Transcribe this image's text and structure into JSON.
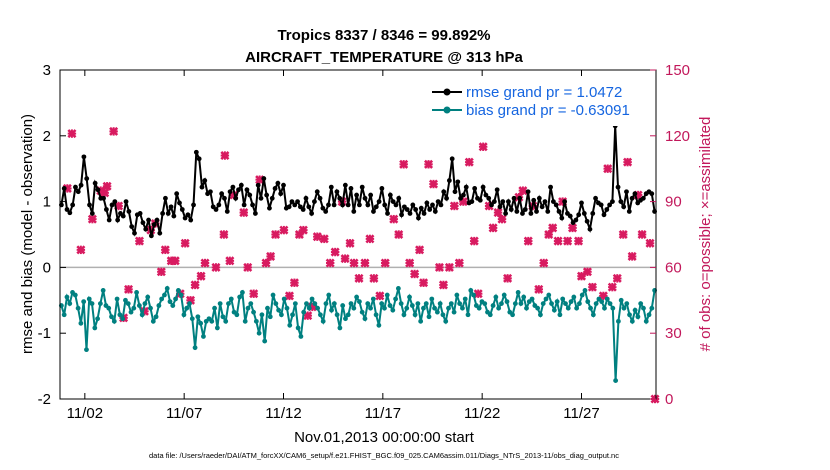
{
  "chart_data": {
    "type": "line",
    "title": "Tropics 8337 / 8346 = 99.892%",
    "subtitle": "AIRCRAFT_TEMPERATURE @ 313 hPa",
    "xlabel": "Nov.01,2013 00:00:00 start",
    "ylabel": "rmse and bias (model - observation)",
    "y2label": "# of obs: o=possible; ×=assimilated",
    "footnote": "data file: /Users/raeder/DAI/ATM_forcXX/CAM6_setup/f.e21.FHIST_BGC.f09_025.CAM6assim.011/Diags_NTrS_2013-11/obs_diag_output.nc",
    "xlim": [
      0.25,
      30.25
    ],
    "ylim": [
      -2,
      3
    ],
    "y2lim": [
      0,
      150
    ],
    "x_ticks": [
      1.5,
      6.5,
      11.5,
      16.5,
      21.5,
      26.5
    ],
    "x_tick_labels": [
      "11/02",
      "11/07",
      "11/12",
      "11/17",
      "11/22",
      "11/27"
    ],
    "y_ticks": [
      -2,
      -1,
      0,
      1,
      2,
      3
    ],
    "y_tick_labels": [
      "-2",
      "-1",
      "0",
      "1",
      "2",
      "3"
    ],
    "y2_ticks": [
      0,
      30,
      60,
      90,
      120,
      150
    ],
    "y2_tick_labels": [
      "0",
      "30",
      "60",
      "90",
      "120",
      "150"
    ],
    "series": [
      {
        "name": "rmse grand pr = 1.0472",
        "color": "#000000",
        "axis": "left",
        "marker": "dot",
        "values": [
          0.95,
          1.2,
          0.88,
          0.83,
          0.95,
          1.22,
          1.15,
          1.25,
          1.68,
          1.35,
          0.95,
          0.82,
          1.28,
          1.18,
          1.05,
          1.05,
          0.88,
          0.72,
          0.95,
          1.0,
          0.72,
          0.82,
          0.78,
          1.0,
          0.85,
          0.62,
          0.52,
          0.8,
          0.82,
          0.68,
          0.58,
          0.72,
          0.48,
          0.65,
          0.72,
          0.52,
          0.82,
          1.05,
          0.82,
          0.92,
          0.78,
          1.12,
          0.98,
          0.88,
          0.75,
          0.8,
          0.72,
          0.95,
          1.75,
          1.65,
          1.22,
          1.32,
          1.12,
          1.15,
          0.92,
          0.88,
          0.95,
          1.12,
          1.05,
          0.85,
          1.15,
          1.22,
          1.05,
          1.18,
          1.25,
          0.95,
          1.18,
          1.1,
          0.95,
          0.82,
          1.25,
          1.05,
          1.35,
          1.1,
          0.9,
          1.05,
          1.2,
          1.28,
          1.12,
          1.25,
          0.9,
          0.92,
          1.0,
          0.95,
          1.0,
          0.92,
          0.88,
          1.05,
          0.92,
          0.82,
          1.0,
          1.15,
          1.05,
          0.9,
          0.85,
          0.95,
          1.22,
          0.95,
          1.15,
          1.05,
          0.95,
          1.25,
          0.95,
          1.2,
          0.85,
          1.1,
          0.95,
          1.22,
          1.05,
          0.95,
          1.1,
          0.85,
          0.92,
          1.0,
          1.2,
          0.95,
          0.82,
          1.1,
          1.0,
          0.95,
          1.05,
          0.8,
          0.92,
          0.88,
          0.82,
          0.95,
          0.88,
          0.75,
          0.9,
          0.82,
          0.98,
          0.88,
          0.95,
          0.85,
          1.0,
          0.95,
          1.15,
          1.05,
          1.32,
          1.65,
          1.15,
          1.3,
          1.05,
          1.1,
          1.22,
          0.98,
          1.0,
          1.2,
          1.05,
          1.02,
          1.22,
          1.1,
          1.05,
          0.95,
          1.0,
          1.18,
          0.92,
          1.0,
          0.82,
          1.0,
          0.88,
          1.05,
          0.85,
          1.05,
          0.82,
          0.88,
          1.15,
          0.82,
          1.02,
          0.85,
          1.05,
          0.92,
          1.0,
          0.85,
          1.22,
          1.0,
          0.95,
          0.85,
          0.75,
          1.0,
          0.82,
          0.78,
          0.68,
          0.72,
          0.8,
          0.98,
          0.82,
          0.7,
          0.58,
          0.82,
          1.05,
          0.98,
          0.95,
          0.8,
          0.88,
          0.95,
          1.0,
          2.15,
          1.22,
          1.0,
          0.92,
          1.15,
          0.85,
          1.05,
          1.12,
          0.98,
          1.02,
          1.05,
          1.12,
          1.15,
          1.12,
          0.85
        ]
      },
      {
        "name": "bias grand pr = -0.63091",
        "color": "#008080",
        "axis": "left",
        "marker": "dot",
        "values": [
          -0.58,
          -0.72,
          -0.45,
          -0.55,
          -0.38,
          -0.42,
          -0.62,
          -0.85,
          -0.52,
          -1.25,
          -0.48,
          -0.55,
          -0.92,
          -0.78,
          -0.55,
          -0.35,
          -0.58,
          -0.62,
          -0.75,
          -0.82,
          -0.48,
          -0.72,
          -0.78,
          -0.5,
          -0.55,
          -0.68,
          -0.62,
          -0.38,
          -0.58,
          -0.72,
          -0.55,
          -0.45,
          -0.62,
          -0.82,
          -0.75,
          -0.58,
          -0.48,
          -0.42,
          -0.32,
          -0.52,
          -0.58,
          -0.48,
          -0.35,
          -0.42,
          -0.72,
          -0.62,
          -0.55,
          -0.78,
          -1.22,
          -0.75,
          -0.85,
          -1.05,
          -0.82,
          -0.78,
          -0.82,
          -0.62,
          -0.92,
          -0.55,
          -0.75,
          -0.82,
          -0.55,
          -0.48,
          -0.68,
          -0.72,
          -0.45,
          -0.38,
          -0.82,
          -0.62,
          -0.55,
          -0.68,
          -0.82,
          -1.0,
          -0.72,
          -1.12,
          -0.62,
          -0.75,
          -0.42,
          -0.55,
          -0.65,
          -0.72,
          -0.48,
          -0.62,
          -0.88,
          -0.72,
          -0.55,
          -0.92,
          -1.05,
          -0.68,
          -0.55,
          -0.62,
          -0.48,
          -0.55,
          -0.62,
          -0.72,
          -0.82,
          -0.55,
          -0.42,
          -0.65,
          -0.55,
          -0.72,
          -0.92,
          -0.58,
          -0.78,
          -0.72,
          -0.55,
          -0.62,
          -0.45,
          -0.52,
          -0.68,
          -0.78,
          -0.55,
          -0.62,
          -0.48,
          -0.72,
          -0.88,
          -0.55,
          -0.62,
          -0.42,
          -0.58,
          -0.65,
          -0.48,
          -0.32,
          -0.55,
          -0.72,
          -0.62,
          -0.45,
          -0.58,
          -0.72,
          -0.55,
          -0.82,
          -0.62,
          -0.55,
          -0.75,
          -0.48,
          -0.62,
          -0.68,
          -0.55,
          -0.72,
          -0.82,
          -0.62,
          -0.55,
          -0.68,
          -0.42,
          -0.55,
          -0.62,
          -0.48,
          -0.72,
          -0.35,
          -0.42,
          -0.58,
          -0.62,
          -0.52,
          -0.55,
          -0.68,
          -0.72,
          -0.58,
          -0.45,
          -0.62,
          -0.55,
          -0.42,
          -0.52,
          -0.68,
          -0.72,
          -0.55,
          -0.38,
          -0.55,
          -0.45,
          -0.62,
          -0.52,
          -0.48,
          -0.58,
          -0.62,
          -0.72,
          -0.55,
          -0.48,
          -0.42,
          -0.55,
          -0.65,
          -0.52,
          -0.72,
          -0.48,
          -0.55,
          -0.62,
          -0.52,
          -0.45,
          -0.62,
          -0.55,
          -0.42,
          -0.35,
          -0.52,
          -0.62,
          -0.72,
          -0.55,
          -0.48,
          -0.52,
          -0.62,
          -0.48,
          -0.55,
          -0.62,
          -1.72,
          -0.82,
          -0.5,
          -0.62,
          -0.55,
          -0.72,
          -0.82,
          -0.65,
          -0.75,
          -0.55,
          -0.62,
          -0.82,
          -0.72,
          -0.62,
          -0.35
        ]
      },
      {
        "name": "obs assimilated",
        "color": "#d81b60",
        "axis": "right",
        "marker": "x",
        "points": [
          [
            0.62,
            96
          ],
          [
            0.85,
            121
          ],
          [
            1.3,
            68
          ],
          [
            1.88,
            82
          ],
          [
            2.3,
            95
          ],
          [
            2.5,
            94
          ],
          [
            2.62,
            97
          ],
          [
            2.95,
            122
          ],
          [
            3.2,
            88
          ],
          [
            3.45,
            37
          ],
          [
            3.7,
            50
          ],
          [
            4.25,
            72
          ],
          [
            4.5,
            40
          ],
          [
            4.82,
            77
          ],
          [
            5.05,
            80
          ],
          [
            5.35,
            58
          ],
          [
            5.55,
            68
          ],
          [
            5.85,
            63
          ],
          [
            6.05,
            63
          ],
          [
            6.3,
            48
          ],
          [
            6.55,
            71
          ],
          [
            6.82,
            45
          ],
          [
            7.05,
            52
          ],
          [
            7.35,
            56
          ],
          [
            7.55,
            62
          ],
          [
            8.1,
            60
          ],
          [
            8.5,
            75
          ],
          [
            8.55,
            111
          ],
          [
            8.8,
            63
          ],
          [
            9.0,
            93
          ],
          [
            9.5,
            85
          ],
          [
            9.7,
            60
          ],
          [
            10.0,
            48
          ],
          [
            10.3,
            100
          ],
          [
            10.62,
            62
          ],
          [
            10.85,
            65
          ],
          [
            11.1,
            75
          ],
          [
            11.52,
            77
          ],
          [
            11.8,
            47
          ],
          [
            12.05,
            53
          ],
          [
            12.3,
            75
          ],
          [
            12.5,
            77
          ],
          [
            12.72,
            38
          ],
          [
            12.95,
            42
          ],
          [
            13.2,
            74
          ],
          [
            13.55,
            73
          ],
          [
            13.85,
            62
          ],
          [
            14.1,
            67
          ],
          [
            14.45,
            90
          ],
          [
            14.6,
            64
          ],
          [
            14.85,
            71
          ],
          [
            15.05,
            62
          ],
          [
            15.3,
            55
          ],
          [
            15.6,
            62
          ],
          [
            15.85,
            73
          ],
          [
            16.05,
            55
          ],
          [
            16.35,
            47
          ],
          [
            16.62,
            62
          ],
          [
            17.05,
            82
          ],
          [
            17.3,
            75
          ],
          [
            17.55,
            107
          ],
          [
            17.85,
            62
          ],
          [
            18.1,
            57
          ],
          [
            18.35,
            68
          ],
          [
            18.55,
            53
          ],
          [
            18.8,
            107
          ],
          [
            19.05,
            98
          ],
          [
            19.35,
            60
          ],
          [
            19.55,
            52
          ],
          [
            19.85,
            60
          ],
          [
            20.1,
            88
          ],
          [
            20.35,
            62
          ],
          [
            20.55,
            90
          ],
          [
            20.85,
            108
          ],
          [
            21.1,
            72
          ],
          [
            21.3,
            48
          ],
          [
            21.55,
            115
          ],
          [
            21.85,
            88
          ],
          [
            22.05,
            78
          ],
          [
            22.3,
            85
          ],
          [
            22.5,
            82
          ],
          [
            22.78,
            55
          ],
          [
            23.1,
            127
          ],
          [
            23.35,
            92
          ],
          [
            23.55,
            95
          ],
          [
            23.82,
            72
          ],
          [
            24.05,
            88
          ],
          [
            24.35,
            50
          ],
          [
            24.6,
            62
          ],
          [
            24.85,
            75
          ],
          [
            25.05,
            78
          ],
          [
            25.32,
            72
          ],
          [
            25.55,
            90
          ],
          [
            25.8,
            72
          ],
          [
            26.05,
            78
          ],
          [
            26.35,
            72
          ],
          [
            26.5,
            56
          ],
          [
            26.8,
            58
          ],
          [
            27.05,
            51
          ],
          [
            27.35,
            127
          ],
          [
            27.6,
            47
          ],
          [
            27.82,
            105
          ],
          [
            28.05,
            51
          ],
          [
            28.3,
            55
          ],
          [
            28.6,
            75
          ],
          [
            28.82,
            108
          ],
          [
            29.05,
            65
          ],
          [
            29.35,
            93
          ],
          [
            29.55,
            75
          ],
          [
            29.8,
            132
          ],
          [
            29.95,
            71
          ],
          [
            30.2,
            0
          ]
        ]
      }
    ]
  }
}
